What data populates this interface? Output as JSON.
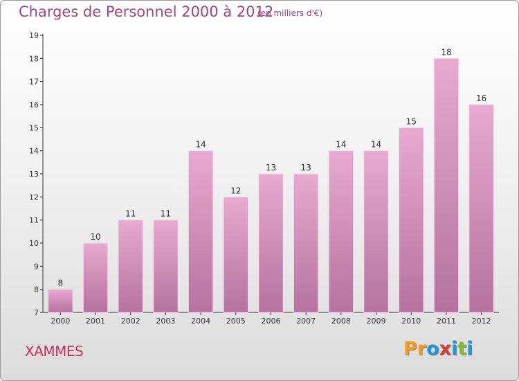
{
  "header": {
    "title": "Charges de Personnel 2000 à 2012",
    "subtitle": "(en milliers d'€)"
  },
  "footer": {
    "commune": "XAMMES",
    "logo_text": "Proxiti",
    "logo_colors": [
      "#f39a1e",
      "#f39a1e",
      "#1f97d4",
      "#d83a2a",
      "#1f97d4",
      "#7fbf2c",
      "#1f97d4"
    ]
  },
  "colors": {
    "bar_top": "#e8aad0",
    "bar_bottom": "#b5729f",
    "title": "#a4447c",
    "axis": "#333333"
  },
  "chart_data": {
    "type": "bar",
    "categories": [
      "2000",
      "2001",
      "2002",
      "2003",
      "2004",
      "2005",
      "2006",
      "2007",
      "2008",
      "2009",
      "2010",
      "2011",
      "2012"
    ],
    "values": [
      8,
      10,
      11,
      11,
      14,
      12,
      13,
      13,
      14,
      14,
      15,
      18,
      16
    ],
    "ylim": [
      7,
      19
    ],
    "yticks": [
      7,
      8,
      9,
      10,
      11,
      12,
      13,
      14,
      15,
      16,
      17,
      18,
      19
    ],
    "grid": false,
    "legend": "none"
  }
}
